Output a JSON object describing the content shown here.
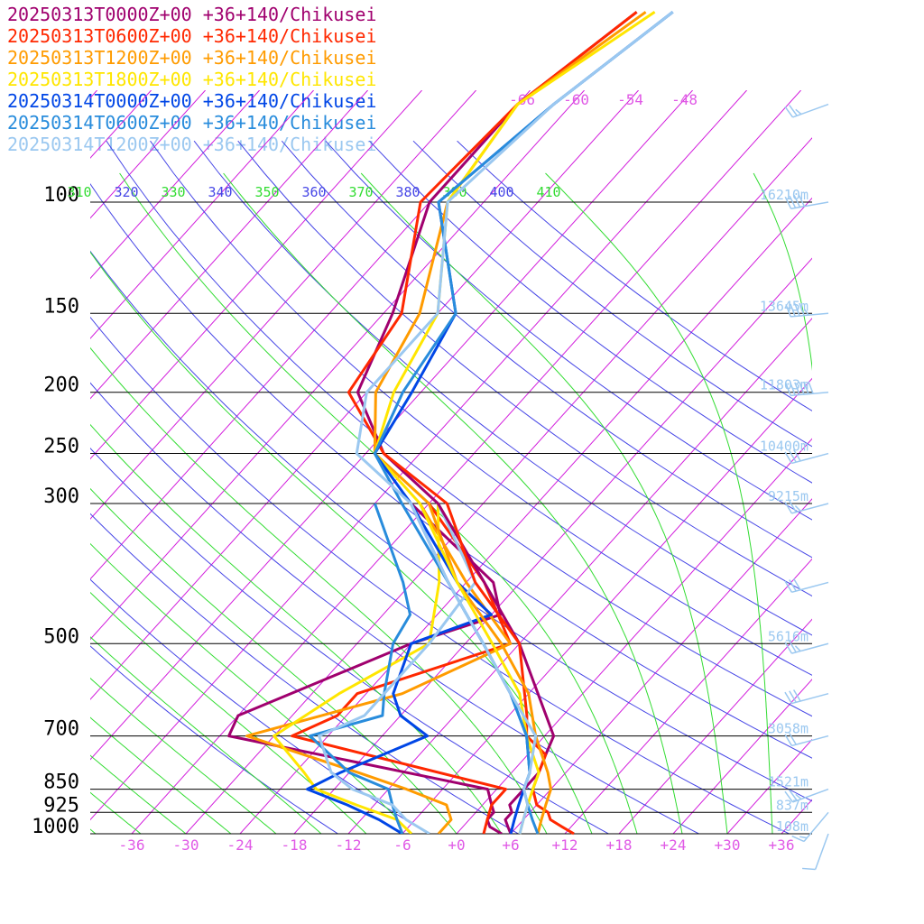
{
  "chart_data": {
    "type": "line",
    "diagram": "skew-t",
    "legend_position": "top-left",
    "grid": true,
    "series": [
      {
        "name": "20250313T0000Z+00 +36+140/Chikusei",
        "color": "#a0006e",
        "temp_points": [
          [
            1000,
            6
          ],
          [
            975,
            5
          ],
          [
            950,
            4
          ],
          [
            925,
            4
          ],
          [
            900,
            3
          ],
          [
            850,
            3
          ],
          [
            800,
            3
          ],
          [
            750,
            2
          ],
          [
            700,
            1
          ],
          [
            500,
            -12
          ],
          [
            400,
            -22
          ],
          [
            300,
            -35
          ],
          [
            250,
            -46
          ],
          [
            200,
            -55
          ],
          [
            150,
            -59
          ],
          [
            100,
            -66
          ],
          [
            70,
            -66
          ],
          [
            50,
            -62
          ]
        ],
        "dew_points": [
          [
            1000,
            5
          ],
          [
            975,
            3
          ],
          [
            950,
            2
          ],
          [
            925,
            2
          ],
          [
            900,
            1
          ],
          [
            850,
            -1
          ],
          [
            700,
            -35
          ],
          [
            650,
            -36
          ],
          [
            500,
            -24
          ],
          [
            450,
            -17
          ],
          [
            400,
            -21
          ],
          [
            300,
            -38
          ]
        ]
      },
      {
        "name": "20250313T0600Z+00 +36+140/Chikusei",
        "color": "#ff2800",
        "temp_points": [
          [
            1000,
            13
          ],
          [
            975,
            11
          ],
          [
            950,
            9
          ],
          [
            925,
            8
          ],
          [
            900,
            6
          ],
          [
            850,
            4
          ],
          [
            800,
            3
          ],
          [
            750,
            2
          ],
          [
            700,
            -2
          ],
          [
            650,
            -4
          ],
          [
            500,
            -12
          ],
          [
            400,
            -23
          ],
          [
            300,
            -34
          ],
          [
            250,
            -46
          ],
          [
            200,
            -56
          ],
          [
            150,
            -58
          ],
          [
            100,
            -67
          ],
          [
            70,
            -66
          ],
          [
            50,
            -62
          ]
        ],
        "dew_points": [
          [
            1000,
            3
          ],
          [
            950,
            2
          ],
          [
            900,
            1
          ],
          [
            850,
            1
          ],
          [
            700,
            -28
          ],
          [
            650,
            -25
          ],
          [
            600,
            -25
          ],
          [
            500,
            -13
          ],
          [
            400,
            -22
          ],
          [
            300,
            -36
          ]
        ]
      },
      {
        "name": "20250313T1200Z+00 +36+140/Chikusei",
        "color": "#ff9b00",
        "temp_points": [
          [
            1000,
            9
          ],
          [
            950,
            8
          ],
          [
            900,
            7
          ],
          [
            850,
            6
          ],
          [
            800,
            4
          ],
          [
            700,
            -1
          ],
          [
            600,
            -6
          ],
          [
            500,
            -14
          ],
          [
            400,
            -25
          ],
          [
            300,
            -36
          ],
          [
            250,
            -47
          ],
          [
            200,
            -53
          ],
          [
            150,
            -56
          ],
          [
            100,
            -64
          ],
          [
            70,
            -66
          ],
          [
            50,
            -61
          ]
        ],
        "dew_points": [
          [
            1000,
            -2
          ],
          [
            950,
            -2
          ],
          [
            900,
            -4
          ],
          [
            850,
            -10
          ],
          [
            800,
            -17
          ],
          [
            700,
            -33
          ],
          [
            600,
            -20
          ],
          [
            500,
            -13
          ],
          [
            400,
            -24
          ],
          [
            300,
            -37
          ]
        ]
      },
      {
        "name": "20250313T1800Z+00 +36+140/Chikusei",
        "color": "#ffe600",
        "temp_points": [
          [
            1000,
            7
          ],
          [
            950,
            6
          ],
          [
            900,
            5
          ],
          [
            850,
            4
          ],
          [
            800,
            3
          ],
          [
            700,
            -2
          ],
          [
            600,
            -7
          ],
          [
            500,
            -15
          ],
          [
            400,
            -25
          ],
          [
            300,
            -37
          ],
          [
            250,
            -47
          ],
          [
            200,
            -51
          ],
          [
            150,
            -54
          ],
          [
            100,
            -64
          ],
          [
            70,
            -66
          ],
          [
            50,
            -60
          ]
        ],
        "dew_points": [
          [
            1000,
            -5
          ],
          [
            950,
            -8
          ],
          [
            900,
            -14
          ],
          [
            850,
            -20
          ],
          [
            800,
            -23
          ],
          [
            700,
            -30
          ],
          [
            600,
            -27
          ],
          [
            500,
            -22
          ],
          [
            400,
            -27
          ],
          [
            300,
            -35
          ]
        ]
      },
      {
        "name": "20250314T0000Z+00 +36+140/Chikusei",
        "color": "#0046e6",
        "temp_points": [
          [
            1000,
            6
          ],
          [
            950,
            5
          ],
          [
            900,
            4
          ],
          [
            850,
            3
          ],
          [
            800,
            2
          ],
          [
            700,
            -2
          ],
          [
            600,
            -8
          ],
          [
            500,
            -16
          ],
          [
            400,
            -26
          ],
          [
            300,
            -38
          ],
          [
            250,
            -47
          ],
          [
            200,
            -49
          ],
          [
            150,
            -52
          ],
          [
            100,
            -65
          ],
          [
            70,
            -62
          ],
          [
            50,
            -58
          ]
        ],
        "dew_points": [
          [
            1000,
            -6
          ],
          [
            950,
            -10
          ],
          [
            900,
            -15
          ],
          [
            850,
            -21
          ],
          [
            800,
            -19
          ],
          [
            700,
            -13
          ],
          [
            650,
            -18
          ],
          [
            600,
            -21
          ],
          [
            500,
            -24
          ],
          [
            450,
            -18
          ],
          [
            400,
            -25
          ],
          [
            300,
            -38
          ]
        ]
      },
      {
        "name": "20250314T0600Z+00 +36+140/Chikusei",
        "color": "#288cdc",
        "temp_points": [
          [
            1000,
            9
          ],
          [
            950,
            7
          ],
          [
            900,
            5
          ],
          [
            850,
            3
          ],
          [
            800,
            2
          ],
          [
            700,
            -2
          ],
          [
            600,
            -8
          ],
          [
            500,
            -16
          ],
          [
            400,
            -26
          ],
          [
            300,
            -39
          ],
          [
            250,
            -47
          ],
          [
            200,
            -50
          ],
          [
            150,
            -52
          ],
          [
            100,
            -65
          ],
          [
            70,
            -62
          ],
          [
            50,
            -58
          ]
        ],
        "dew_points": [
          [
            1000,
            -6
          ],
          [
            950,
            -8
          ],
          [
            900,
            -10
          ],
          [
            850,
            -12
          ],
          [
            800,
            -18
          ],
          [
            700,
            -26
          ],
          [
            650,
            -20
          ],
          [
            600,
            -22
          ],
          [
            500,
            -26
          ],
          [
            450,
            -27
          ],
          [
            400,
            -31
          ],
          [
            300,
            -42
          ]
        ]
      },
      {
        "name": "20250314T1200Z+00 +36+140/Chikusei",
        "color": "#9bc8f0",
        "temp_points": [
          [
            1000,
            7
          ],
          [
            950,
            6
          ],
          [
            900,
            5
          ],
          [
            850,
            3
          ],
          [
            800,
            2
          ],
          [
            700,
            -1
          ],
          [
            600,
            -8
          ],
          [
            500,
            -16
          ],
          [
            400,
            -26
          ],
          [
            300,
            -38
          ],
          [
            250,
            -49
          ],
          [
            200,
            -54
          ],
          [
            150,
            -54
          ],
          [
            100,
            -64
          ],
          [
            70,
            -62
          ],
          [
            50,
            -58
          ]
        ],
        "dew_points": [
          [
            1000,
            -3
          ],
          [
            950,
            -7
          ],
          [
            900,
            -10
          ],
          [
            850,
            -16
          ],
          [
            800,
            -20
          ],
          [
            700,
            -25
          ],
          [
            650,
            -22
          ],
          [
            600,
            -22
          ],
          [
            500,
            -22
          ],
          [
            400,
            -23
          ],
          [
            300,
            -35
          ]
        ]
      }
    ],
    "pressure_ticks": [
      "100",
      "150",
      "200",
      "250",
      "300",
      "500",
      "700",
      "850",
      "925",
      "1000"
    ],
    "temperature_ticks": [
      "-36",
      "-30",
      "-24",
      "-18",
      "-12",
      "-6",
      "+0",
      "+6",
      "+12",
      "+18",
      "+24",
      "+30",
      "+36"
    ],
    "upper_isotherm_labels": [
      {
        "t": -66,
        "label": "-66"
      },
      {
        "t": -60,
        "label": "-60"
      },
      {
        "t": -54,
        "label": "-54"
      },
      {
        "t": -48,
        "label": "-48"
      }
    ],
    "theta_labels": [
      "310",
      "320",
      "330",
      "340",
      "350",
      "360",
      "370",
      "380",
      "390",
      "400",
      "410"
    ],
    "heights": [
      {
        "p": 100,
        "label": "16210m"
      },
      {
        "p": 150,
        "label": "13645m"
      },
      {
        "p": 200,
        "label": "11803m"
      },
      {
        "p": 250,
        "label": "10400m"
      },
      {
        "p": 300,
        "label": "9215m"
      },
      {
        "p": 500,
        "label": "5616m"
      },
      {
        "p": 700,
        "label": "3058m"
      },
      {
        "p": 850,
        "label": "1521m"
      },
      {
        "p": 925,
        "label": "837m"
      },
      {
        "p": 1000,
        "label": "108m"
      }
    ],
    "wind_barbs": [
      {
        "p": 70,
        "dir": 250,
        "speed_kt": 25
      },
      {
        "p": 100,
        "dir": 260,
        "speed_kt": 40
      },
      {
        "p": 150,
        "dir": 265,
        "speed_kt": 75
      },
      {
        "p": 200,
        "dir": 265,
        "speed_kt": 90
      },
      {
        "p": 250,
        "dir": 255,
        "speed_kt": 60
      },
      {
        "p": 300,
        "dir": 255,
        "speed_kt": 55
      },
      {
        "p": 400,
        "dir": 255,
        "speed_kt": 60
      },
      {
        "p": 500,
        "dir": 255,
        "speed_kt": 55
      },
      {
        "p": 600,
        "dir": 255,
        "speed_kt": 30
      },
      {
        "p": 700,
        "dir": 255,
        "speed_kt": 50
      },
      {
        "p": 850,
        "dir": 250,
        "speed_kt": 25
      },
      {
        "p": 925,
        "dir": 220,
        "speed_kt": 15
      },
      {
        "p": 1000,
        "dir": 200,
        "speed_kt": 10
      }
    ],
    "colors": {
      "axis_labels": "#e05ae6",
      "isotherms": "#d21edc",
      "dry_adiabats": "#4646e6",
      "moist_adiabats": "#32dc32",
      "heights": "#9bc8f0",
      "wind_barbs": "#9bc8f0",
      "isobars": "#000000"
    }
  }
}
